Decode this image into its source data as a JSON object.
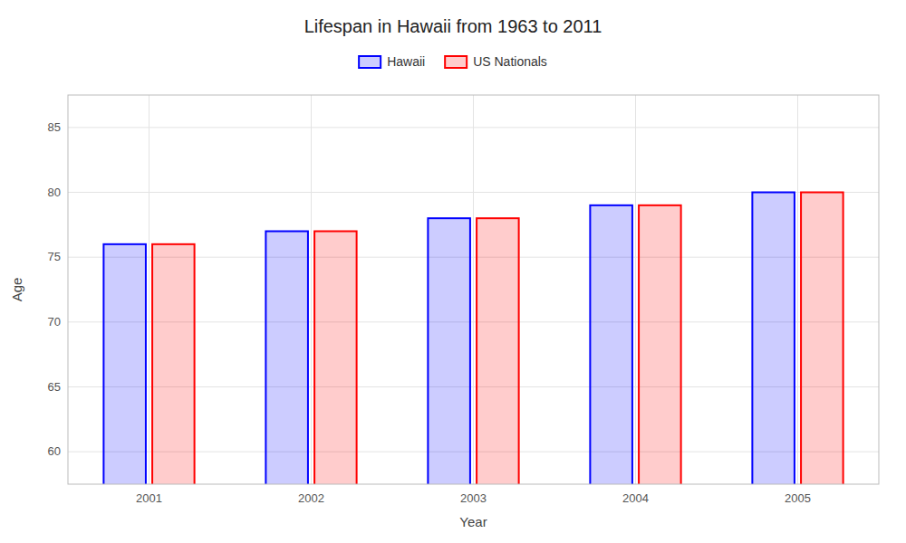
{
  "chart_data": {
    "type": "bar",
    "title": "Lifespan in Hawaii from 1963 to 2011",
    "xlabel": "Year",
    "ylabel": "Age",
    "categories": [
      "2001",
      "2002",
      "2003",
      "2004",
      "2005"
    ],
    "series": [
      {
        "name": "Hawaii",
        "color": "#0000ff",
        "values": [
          76.0,
          77.0,
          78.0,
          79.0,
          80.0
        ]
      },
      {
        "name": "US Nationals",
        "color": "#ff0000",
        "values": [
          76.0,
          77.0,
          78.0,
          79.0,
          80.0
        ]
      }
    ],
    "ylim": [
      57.5,
      87.5
    ],
    "yticks": [
      60,
      65,
      70,
      75,
      80,
      85
    ],
    "grid": true,
    "legend": "top"
  }
}
